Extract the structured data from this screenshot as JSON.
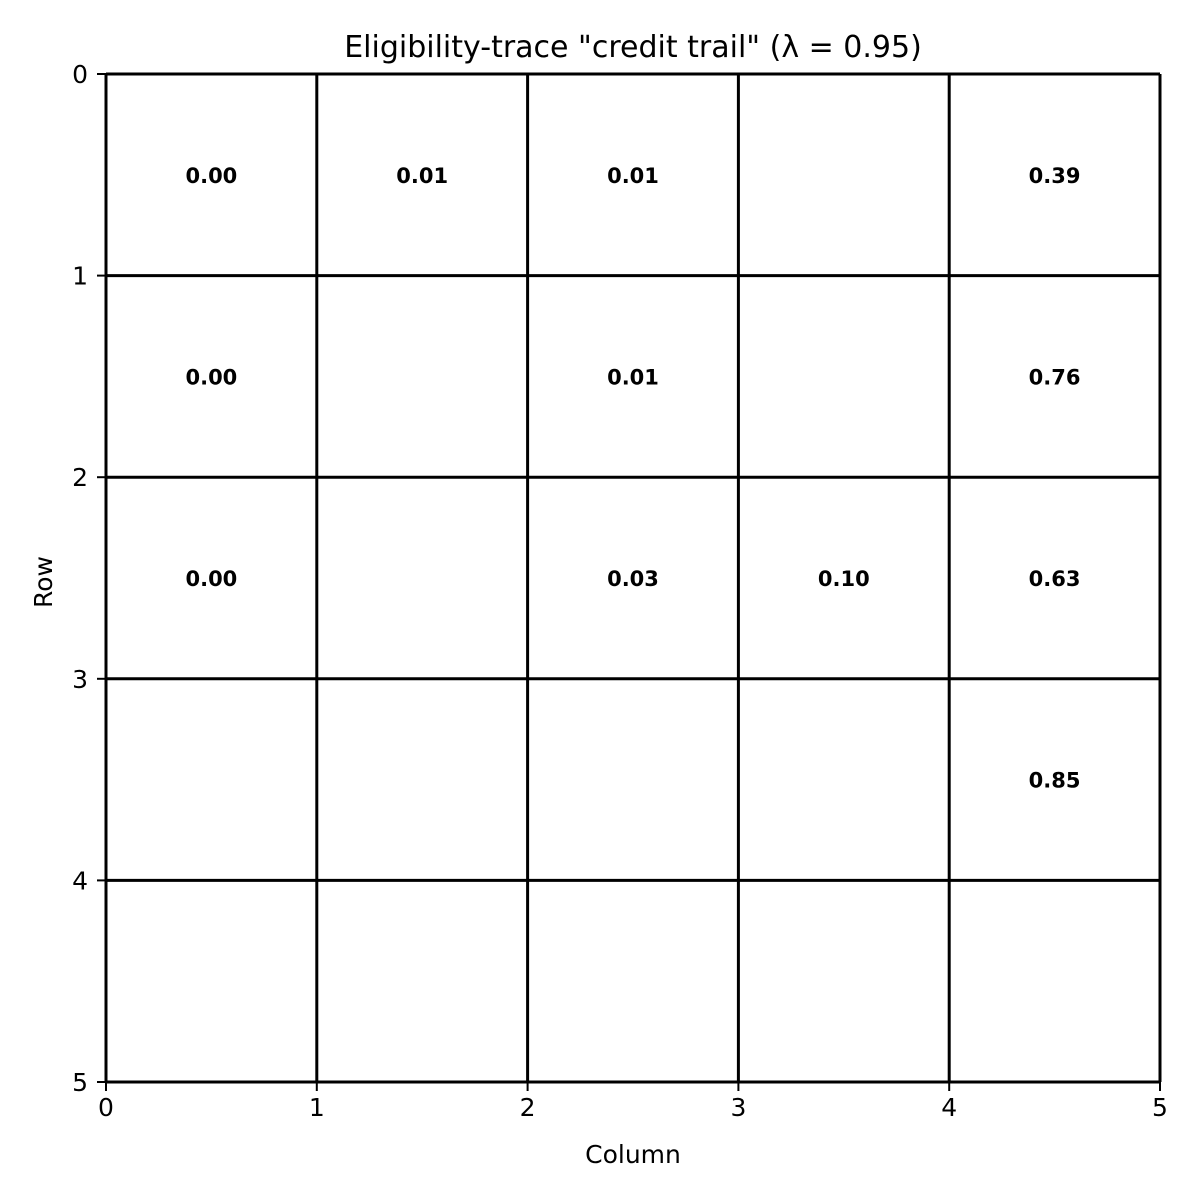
{
  "chart_data": {
    "type": "heatmap",
    "title": "Eligibility-trace \"credit trail\" (λ = 0.95)",
    "xlabel": "Column",
    "ylabel": "Row",
    "xlim": [
      0,
      5
    ],
    "ylim": [
      5,
      0
    ],
    "x_ticks": [
      "0",
      "1",
      "2",
      "3",
      "4",
      "5"
    ],
    "y_ticks": [
      "0",
      "1",
      "2",
      "3",
      "4",
      "5"
    ],
    "grid": true,
    "cells": [
      {
        "row": 0,
        "col": 0,
        "label": "0.00"
      },
      {
        "row": 0,
        "col": 1,
        "label": "0.01"
      },
      {
        "row": 0,
        "col": 2,
        "label": "0.01"
      },
      {
        "row": 0,
        "col": 4,
        "label": "0.39"
      },
      {
        "row": 1,
        "col": 0,
        "label": "0.00"
      },
      {
        "row": 1,
        "col": 2,
        "label": "0.01"
      },
      {
        "row": 1,
        "col": 4,
        "label": "0.76"
      },
      {
        "row": 2,
        "col": 0,
        "label": "0.00"
      },
      {
        "row": 2,
        "col": 2,
        "label": "0.03"
      },
      {
        "row": 2,
        "col": 3,
        "label": "0.10"
      },
      {
        "row": 2,
        "col": 4,
        "label": "0.63"
      },
      {
        "row": 3,
        "col": 4,
        "label": "0.85"
      }
    ]
  }
}
